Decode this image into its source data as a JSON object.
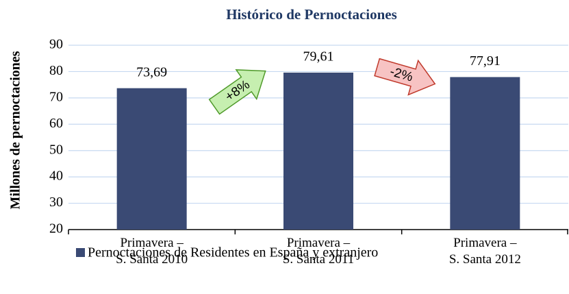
{
  "chart_data": {
    "type": "bar",
    "title": "Histórico de Pernoctaciones",
    "y_label": "Millones de pernoctaciones",
    "categories": [
      "Primavera –\nS. Santa 2010",
      "Primavera –\nS. Santa 2011",
      "Primavera –\nS. Santa 2012"
    ],
    "series": [
      {
        "name": "Pernoctaciones de Residentes en España y extranjero",
        "color": "#3a4a74",
        "values": [
          73.69,
          79.61,
          77.91
        ],
        "value_labels": [
          "73,69",
          "79,61",
          "77,91"
        ]
      }
    ],
    "annotations": [
      "+8%",
      "-2%"
    ],
    "ylim": [
      20,
      90
    ],
    "yticks": [
      20,
      30,
      40,
      50,
      60,
      70,
      80,
      90
    ],
    "grid": true,
    "legend": "bottom"
  }
}
